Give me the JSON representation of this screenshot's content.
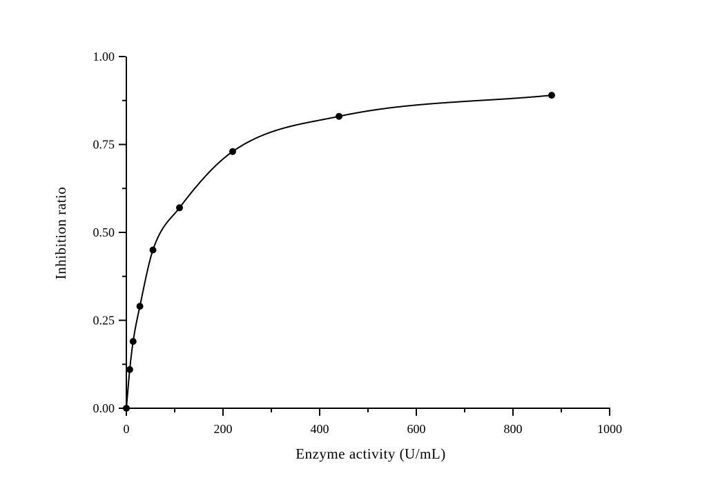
{
  "figure": {
    "background": "#ffffff",
    "foreground": "#000000"
  },
  "chart_data": {
    "type": "scatter",
    "title": "",
    "xlabel": "Enzyme activity (U/mL)",
    "ylabel": "Inhibition ratio",
    "xlim": [
      0,
      1000
    ],
    "ylim": [
      0.0,
      1.0
    ],
    "grid": false,
    "legend": null,
    "x_major_ticks": [
      0,
      200,
      400,
      600,
      800,
      1000
    ],
    "x_tick_labels": [
      "0",
      "200",
      "400",
      "600",
      "800",
      "1000"
    ],
    "x_minor_ticks": [
      100,
      300,
      500,
      700,
      900
    ],
    "y_major_ticks": [
      0.0,
      0.25,
      0.5,
      0.75,
      1.0
    ],
    "y_tick_labels": [
      "0.00",
      "0.25",
      "0.50",
      "0.75",
      "1.00"
    ],
    "y_minor_ticks": [
      0.125,
      0.375,
      0.625,
      0.875
    ],
    "series": [
      {
        "name": "inhibition-ratio-data",
        "marker": "filled-circle",
        "marker_color": "#000000",
        "marker_radius": 5,
        "points": [
          {
            "x": 0,
            "y": 0.0
          },
          {
            "x": 7,
            "y": 0.11
          },
          {
            "x": 14,
            "y": 0.19
          },
          {
            "x": 28,
            "y": 0.29
          },
          {
            "x": 55,
            "y": 0.45
          },
          {
            "x": 110,
            "y": 0.57
          },
          {
            "x": 220,
            "y": 0.73
          },
          {
            "x": 440,
            "y": 0.83
          },
          {
            "x": 880,
            "y": 0.89
          }
        ]
      }
    ],
    "fit_curve": {
      "name": "saturation-fit-curve",
      "style": "smooth line through data points, from x=0 to x=880",
      "color": "#000000",
      "width": 2
    }
  }
}
